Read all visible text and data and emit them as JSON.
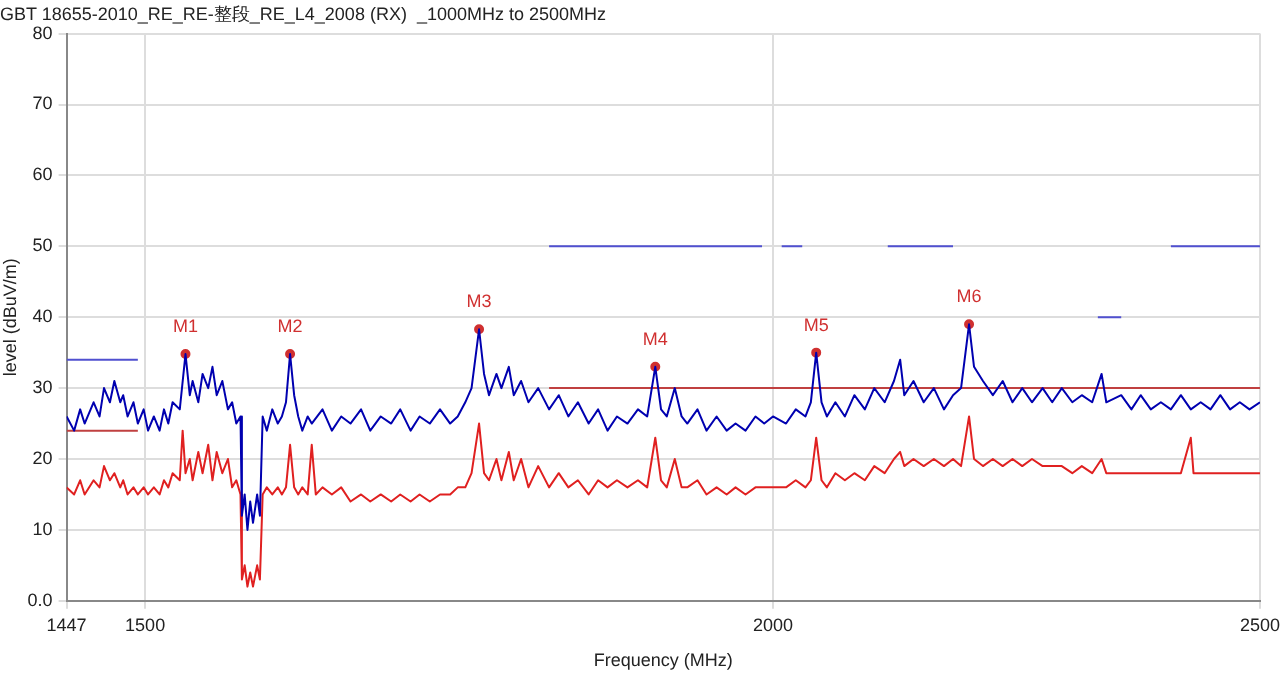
{
  "chart_data": {
    "type": "line",
    "title": "GBT 18655-2010_RE_RE-整段_RE_L4_2008 (RX)  _1000MHz to 2500MHz",
    "xlabel": "Frequency (MHz)",
    "ylabel": "level (dBuV/m)",
    "log": "x",
    "xlim": [
      1447,
      2500
    ],
    "xticks": [
      1447,
      1500,
      2000,
      2500
    ],
    "ylim": [
      0,
      80
    ],
    "yticks": [
      {
        "value": 0,
        "label": "0.0"
      },
      10,
      20,
      30,
      40,
      50,
      60,
      70,
      80
    ],
    "grid": true,
    "legend": false,
    "marker": "none",
    "line_style": "solid",
    "series": [
      {
        "color": "#0000b0",
        "x": [
          1447,
          1452,
          1456,
          1459,
          1465,
          1469,
          1472,
          1476,
          1479,
          1483,
          1485,
          1488,
          1492,
          1495,
          1499,
          1502,
          1506,
          1510,
          1513,
          1516,
          1519,
          1524,
          1528,
          1531,
          1533,
          1537,
          1540,
          1544,
          1547,
          1550,
          1554,
          1558,
          1561,
          1564,
          1567,
          1568,
          1570,
          1572,
          1574,
          1576,
          1579,
          1581,
          1583,
          1586,
          1590,
          1594,
          1597,
          1600,
          1603,
          1606,
          1609,
          1612,
          1616,
          1619,
          1627,
          1634,
          1641,
          1648,
          1656,
          1663,
          1671,
          1679,
          1686,
          1694,
          1701,
          1709,
          1717,
          1725,
          1731,
          1737,
          1742,
          1748,
          1752,
          1756,
          1762,
          1766,
          1772,
          1776,
          1782,
          1788,
          1796,
          1805,
          1813,
          1821,
          1829,
          1838,
          1846,
          1854,
          1862,
          1871,
          1880,
          1888,
          1895,
          1900,
          1905,
          1912,
          1918,
          1923,
          1932,
          1940,
          1949,
          1958,
          1966,
          1975,
          1984,
          1992,
          2000,
          2012,
          2021,
          2030,
          2035,
          2040,
          2045,
          2050,
          2058,
          2067,
          2076,
          2086,
          2095,
          2105,
          2114,
          2120,
          2124,
          2133,
          2143,
          2153,
          2163,
          2172,
          2180,
          2188,
          2193,
          2202,
          2212,
          2222,
          2232,
          2242,
          2252,
          2263,
          2273,
          2283,
          2294,
          2304,
          2315,
          2325,
          2330,
          2346,
          2357,
          2367,
          2378,
          2389,
          2400,
          2411,
          2422,
          2433,
          2444,
          2455,
          2466,
          2477,
          2488,
          2500
        ],
        "values": [
          26,
          24,
          27,
          25,
          28,
          26,
          30,
          28,
          31,
          28,
          29,
          26,
          28,
          25,
          27,
          24,
          26,
          24,
          27,
          25,
          28,
          27,
          34.8,
          29,
          31,
          28,
          32,
          30,
          33,
          29,
          31,
          27,
          28,
          25,
          26,
          12,
          15,
          10,
          14,
          11,
          15,
          12,
          26,
          24,
          27,
          25,
          26,
          28,
          34.8,
          29,
          26,
          24,
          26,
          25,
          27,
          24,
          26,
          25,
          27,
          24,
          26,
          25,
          27,
          24,
          26,
          25,
          27,
          25,
          26,
          28,
          30,
          38.3,
          32,
          29,
          32,
          30,
          33,
          29,
          31,
          28,
          30,
          27,
          29,
          26,
          28,
          25,
          27,
          24,
          26,
          25,
          27,
          26,
          33,
          27,
          26,
          30,
          26,
          25,
          27,
          24,
          26,
          24,
          25,
          24,
          26,
          25,
          26,
          25,
          27,
          26,
          28,
          35,
          28,
          26,
          28,
          26,
          29,
          27,
          30,
          28,
          31,
          34,
          29,
          31,
          28,
          30,
          27,
          29,
          30,
          39,
          33,
          31,
          29,
          31,
          28,
          30,
          28,
          30,
          28,
          30,
          28,
          29,
          28,
          32,
          28,
          29,
          27,
          29,
          27,
          28,
          27,
          29,
          27,
          28,
          27,
          29,
          27,
          28,
          27,
          28
        ]
      },
      {
        "color": "#e02020",
        "x": [
          1447,
          1452,
          1456,
          1459,
          1465,
          1469,
          1472,
          1476,
          1479,
          1483,
          1485,
          1488,
          1492,
          1495,
          1499,
          1502,
          1506,
          1510,
          1513,
          1516,
          1519,
          1524,
          1526,
          1528,
          1531,
          1533,
          1537,
          1540,
          1544,
          1547,
          1550,
          1554,
          1558,
          1561,
          1564,
          1567,
          1568,
          1570,
          1572,
          1574,
          1576,
          1579,
          1581,
          1583,
          1586,
          1590,
          1594,
          1597,
          1600,
          1603,
          1606,
          1609,
          1612,
          1616,
          1619,
          1622,
          1627,
          1634,
          1641,
          1648,
          1656,
          1663,
          1671,
          1679,
          1686,
          1694,
          1701,
          1709,
          1717,
          1725,
          1731,
          1737,
          1742,
          1748,
          1752,
          1756,
          1762,
          1766,
          1772,
          1776,
          1782,
          1788,
          1796,
          1805,
          1813,
          1821,
          1829,
          1838,
          1846,
          1854,
          1862,
          1871,
          1880,
          1888,
          1895,
          1900,
          1905,
          1912,
          1918,
          1923,
          1932,
          1940,
          1949,
          1958,
          1966,
          1975,
          1984,
          1992,
          2000,
          2012,
          2021,
          2030,
          2035,
          2040,
          2045,
          2050,
          2058,
          2067,
          2076,
          2086,
          2095,
          2105,
          2114,
          2120,
          2124,
          2133,
          2143,
          2153,
          2163,
          2172,
          2180,
          2188,
          2193,
          2202,
          2212,
          2222,
          2232,
          2242,
          2252,
          2263,
          2273,
          2283,
          2294,
          2304,
          2315,
          2325,
          2330,
          2346,
          2357,
          2367,
          2378,
          2389,
          2400,
          2411,
          2422,
          2425,
          2433,
          2444,
          2455,
          2466,
          2477,
          2488,
          2500
        ],
        "values": [
          16,
          15,
          17,
          15,
          17,
          16,
          19,
          17,
          18,
          16,
          17,
          15,
          16,
          15,
          16,
          15,
          16,
          15,
          17,
          16,
          18,
          17,
          24,
          18,
          20,
          17,
          21,
          18,
          22,
          17,
          21,
          18,
          20,
          16,
          17,
          15,
          3,
          5,
          2,
          4,
          2,
          5,
          3,
          15,
          16,
          15,
          16,
          15,
          16,
          22,
          16,
          15,
          16,
          15,
          22,
          15,
          16,
          15,
          16,
          14,
          15,
          14,
          15,
          14,
          15,
          14,
          15,
          14,
          15,
          15,
          16,
          16,
          18,
          25,
          18,
          17,
          20,
          17,
          21,
          17,
          20,
          16,
          19,
          16,
          18,
          16,
          17,
          15,
          17,
          16,
          17,
          16,
          17,
          16,
          23,
          17,
          16,
          20,
          16,
          16,
          17,
          15,
          16,
          15,
          16,
          15,
          16,
          16,
          16,
          16,
          17,
          16,
          17,
          23,
          17,
          16,
          18,
          17,
          18,
          17,
          19,
          18,
          20,
          21,
          19,
          20,
          19,
          20,
          19,
          20,
          19,
          26,
          20,
          19,
          20,
          19,
          20,
          19,
          20,
          19,
          19,
          19,
          18,
          19,
          18,
          20,
          18,
          18,
          18,
          18,
          18,
          18,
          18,
          18,
          23,
          18,
          18,
          18,
          18,
          18,
          18,
          18,
          18
        ]
      },
      {
        "color": "#5050d0",
        "x": [
          1447,
          1495,
          1496,
          1805,
          1990,
          1991,
          2008,
          2027,
          2028,
          2108,
          2172,
          2173,
          2321,
          2346,
          2347,
          2400,
          2500
        ],
        "values": [
          34,
          34,
          null,
          50,
          50,
          null,
          50,
          50,
          null,
          50,
          50,
          null,
          40,
          40,
          null,
          50,
          50
        ]
      },
      {
        "color": "#c04040",
        "x": [
          1447,
          1495,
          1496,
          1805,
          2500
        ],
        "values": [
          24,
          24,
          null,
          30,
          30
        ]
      },
      {
        "type": "scatter",
        "marker": "circle",
        "color": "#d03030",
        "x": [
          1528,
          1603,
          1748,
          1895,
          2040,
          2188
        ],
        "values": [
          34.8,
          34.8,
          38.3,
          33,
          35,
          39
        ]
      }
    ],
    "annotations": [
      {
        "text": "M1",
        "x": 1528,
        "y": 34.8
      },
      {
        "text": "M2",
        "x": 1603,
        "y": 34.8
      },
      {
        "text": "M3",
        "x": 1748,
        "y": 38.3
      },
      {
        "text": "M4",
        "x": 1895,
        "y": 33
      },
      {
        "text": "M5",
        "x": 2040,
        "y": 35
      },
      {
        "text": "M6",
        "x": 2188,
        "y": 39
      }
    ]
  }
}
